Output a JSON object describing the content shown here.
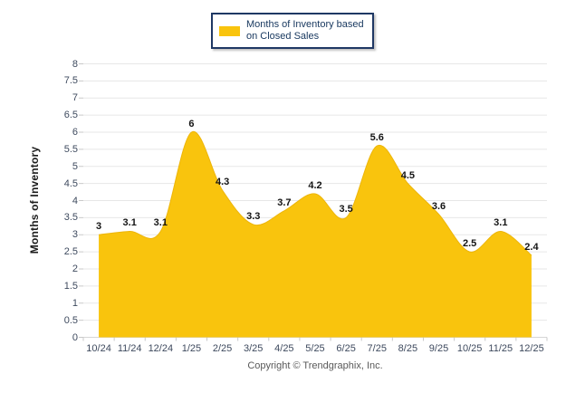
{
  "legend": {
    "label": "Months of Inventory based\non Closed Sales"
  },
  "footer": {
    "copyright": "Copyright © Trendgraphix, Inc."
  },
  "chart_data": {
    "type": "area",
    "title": "",
    "xlabel": "",
    "ylabel": "Months of Inventory",
    "series_name": "Months of Inventory based on Closed Sales",
    "categories": [
      "10/24",
      "11/24",
      "12/24",
      "1/25",
      "2/25",
      "3/25",
      "4/25",
      "5/25",
      "6/25",
      "7/25",
      "8/25",
      "9/25",
      "10/25",
      "11/25",
      "12/25"
    ],
    "values": [
      3,
      3.1,
      3.1,
      6,
      4.3,
      3.3,
      3.7,
      4.2,
      3.5,
      5.6,
      4.5,
      3.6,
      2.5,
      3.1,
      2.4
    ],
    "point_labels": [
      "3",
      "3.1",
      "3.1",
      "6",
      "4.3",
      "3.3",
      "3.7",
      "4.2",
      "3.5",
      "5.6",
      "4.5",
      "3.6",
      "2.5",
      "3.1",
      "2.4"
    ],
    "ylim": [
      0,
      8
    ],
    "ytick_step": 0.5,
    "ytick_labels": [
      "0",
      "0.5",
      "1",
      "1.5",
      "2",
      "2.5",
      "3",
      "3.5",
      "4",
      "4.5",
      "5",
      "5.5",
      "6",
      "6.5",
      "7",
      "7.5",
      "8"
    ],
    "grid": "horizontal",
    "legend_position": "top-center",
    "smoothing": "spline",
    "colors": {
      "area_fill": "#F9C40D",
      "area_stroke": "#EDB50A",
      "gridline": "#E7E7E7",
      "axis_line": "#D6D6D6",
      "tick": "#C9C9C9",
      "tick_label": "#3E4A5E",
      "data_label": "#141414",
      "legend_border": "#1F3864",
      "legend_text": "#17375E",
      "copyright_text": "#595959"
    }
  }
}
